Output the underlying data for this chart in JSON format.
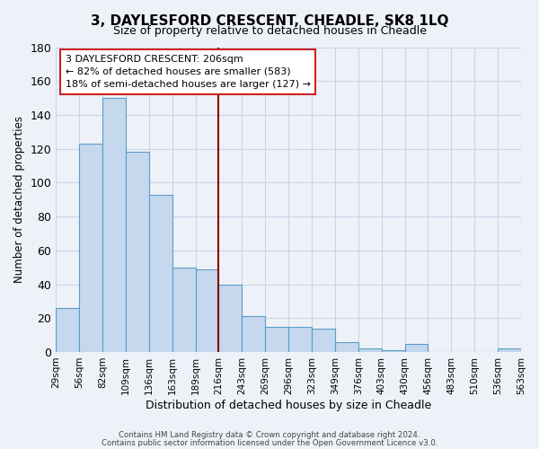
{
  "title": "3, DAYLESFORD CRESCENT, CHEADLE, SK8 1LQ",
  "subtitle": "Size of property relative to detached houses in Cheadle",
  "xlabel": "Distribution of detached houses by size in Cheadle",
  "ylabel": "Number of detached properties",
  "bar_values": [
    26,
    123,
    150,
    118,
    93,
    50,
    49,
    40,
    21,
    15,
    15,
    14,
    6,
    2,
    1,
    5,
    0,
    0,
    0,
    2
  ],
  "bin_labels": [
    "29sqm",
    "56sqm",
    "82sqm",
    "109sqm",
    "136sqm",
    "163sqm",
    "189sqm",
    "216sqm",
    "243sqm",
    "269sqm",
    "296sqm",
    "323sqm",
    "349sqm",
    "376sqm",
    "403sqm",
    "430sqm",
    "456sqm",
    "483sqm",
    "510sqm",
    "536sqm",
    "563sqm"
  ],
  "bar_color": "#c5d8ed",
  "bar_edge_color": "#5a9dc8",
  "vline_color": "#8b0000",
  "annotation_line1": "3 DAYLESFORD CRESCENT: 206sqm",
  "annotation_line2": "← 82% of detached houses are smaller (583)",
  "annotation_line3": "18% of semi-detached houses are larger (127) →",
  "ylim": [
    0,
    180
  ],
  "yticks": [
    0,
    20,
    40,
    60,
    80,
    100,
    120,
    140,
    160,
    180
  ],
  "grid_color": "#c8d4e8",
  "bg_color": "#eef2f8",
  "footer_line1": "Contains HM Land Registry data © Crown copyright and database right 2024.",
  "footer_line2": "Contains public sector information licensed under the Open Government Licence v3.0."
}
